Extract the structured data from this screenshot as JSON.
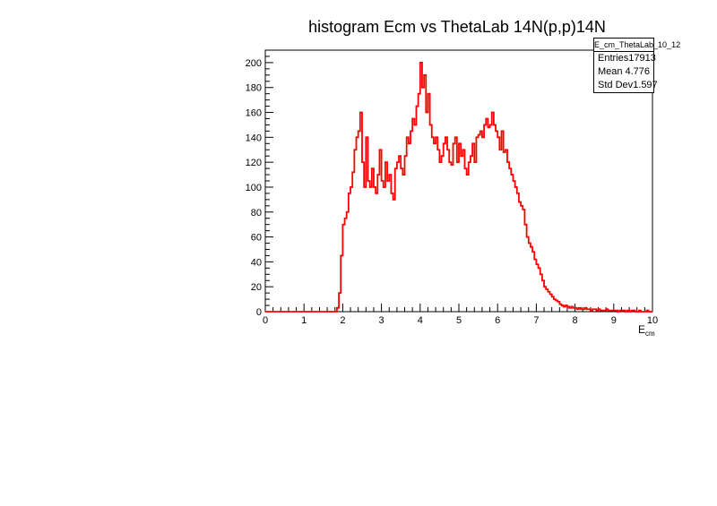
{
  "chart_data": {
    "type": "histogram",
    "title": "histogram Ecm vs ThetaLab 14N(p,p)14N",
    "xlabel": "E",
    "xlabel_sub": "cm",
    "ylabel": "",
    "xlim": [
      0,
      10
    ],
    "ylim": [
      0,
      210
    ],
    "x_ticks": [
      "0",
      "1",
      "2",
      "3",
      "4",
      "5",
      "6",
      "7",
      "8",
      "9",
      "10"
    ],
    "y_ticks": [
      "0",
      "20",
      "40",
      "60",
      "80",
      "100",
      "120",
      "140",
      "160",
      "180",
      "200"
    ],
    "line_color": "#ff0000",
    "bin_width": 0.05,
    "bins_x_start": 0,
    "counts": [
      0,
      0,
      0,
      0,
      0,
      0,
      0,
      0,
      0,
      0,
      0,
      0,
      0,
      0,
      0,
      0,
      0,
      0,
      0,
      0,
      0,
      0,
      0,
      0,
      0,
      0,
      0,
      0,
      0,
      0,
      0,
      0,
      0,
      0,
      0,
      0,
      0,
      3,
      15,
      45,
      70,
      75,
      80,
      95,
      100,
      112,
      130,
      140,
      145,
      160,
      120,
      100,
      140,
      105,
      100,
      115,
      100,
      95,
      110,
      130,
      105,
      100,
      120,
      105,
      110,
      95,
      90,
      115,
      120,
      125,
      115,
      110,
      125,
      140,
      135,
      145,
      155,
      150,
      165,
      175,
      200,
      180,
      190,
      160,
      175,
      150,
      140,
      135,
      140,
      130,
      120,
      125,
      135,
      140,
      130,
      120,
      118,
      135,
      140,
      120,
      135,
      125,
      130,
      115,
      110,
      120,
      125,
      135,
      120,
      140,
      142,
      145,
      140,
      150,
      155,
      148,
      150,
      160,
      150,
      145,
      140,
      130,
      145,
      128,
      130,
      120,
      115,
      110,
      105,
      100,
      95,
      88,
      85,
      82,
      70,
      60,
      55,
      52,
      48,
      42,
      38,
      35,
      30,
      25,
      20,
      18,
      16,
      14,
      12,
      10,
      9,
      8,
      6,
      5,
      4,
      5,
      4,
      3,
      4,
      3,
      3,
      2,
      3,
      2,
      2,
      3,
      2,
      2,
      1,
      2,
      2,
      1,
      2,
      1,
      1,
      1,
      2,
      1,
      1,
      1,
      1,
      1,
      0,
      1,
      1,
      1,
      0,
      1,
      0,
      1,
      1,
      0,
      0,
      1,
      0,
      0,
      0,
      1,
      0,
      0
    ]
  },
  "stats": {
    "title": "E_cm_ThetaLab_10_12",
    "rows": [
      {
        "label": "Entries",
        "value": "17913"
      },
      {
        "label": "Mean",
        "value": "4.776"
      },
      {
        "label": "Std Dev",
        "value": "1.597"
      }
    ]
  }
}
